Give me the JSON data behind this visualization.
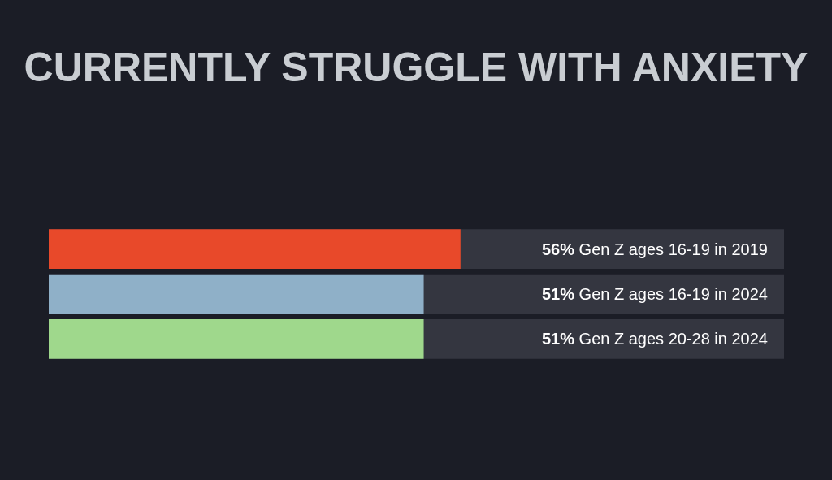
{
  "chart_data": {
    "type": "bar",
    "orientation": "horizontal",
    "title": "CURRENTLY STRUGGLE WITH ANXIETY",
    "categories": [
      "Gen Z ages 16-19 in 2019",
      "Gen Z ages 16-19 in 2024",
      "Gen Z ages 20-28 in 2024"
    ],
    "values": [
      56,
      51,
      51
    ],
    "value_labels": [
      "56%",
      "51%",
      "51%"
    ],
    "colors": [
      "#e8492a",
      "#8fb0c8",
      "#9fd88c"
    ],
    "xlim": [
      0,
      100
    ],
    "tick_labels": false,
    "grid": false,
    "legend": false
  }
}
